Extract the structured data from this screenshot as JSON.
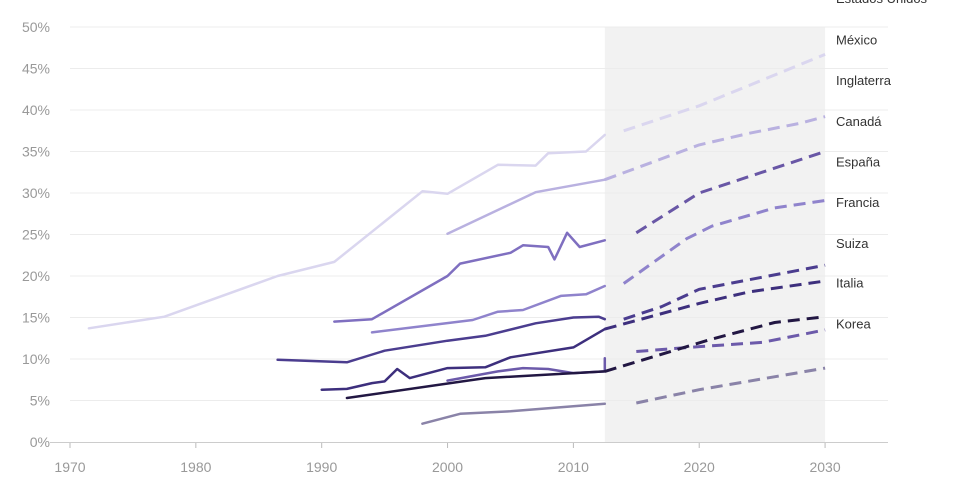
{
  "chart_data": {
    "type": "line",
    "title": "",
    "xlabel": "",
    "ylabel": "",
    "xlim": [
      1970,
      2035
    ],
    "ylim": [
      0,
      50
    ],
    "x_ticks": [
      1970,
      1980,
      1990,
      2000,
      2010,
      2020,
      2030
    ],
    "y_ticks": [
      0,
      5,
      10,
      15,
      20,
      25,
      30,
      35,
      40,
      45,
      50
    ],
    "y_tick_format": "{v}%",
    "projection_shading": [
      2012.5,
      2030
    ],
    "grid": "horizontal",
    "legend": "direct labels at right",
    "series": [
      {
        "name": "Estados Unidos",
        "color": "#dad6ef",
        "actual": [
          [
            1971.5,
            13.7
          ],
          [
            1977.5,
            15.1
          ],
          [
            1986.5,
            20
          ],
          [
            1991,
            21.7
          ],
          [
            1998,
            30.2
          ],
          [
            2000,
            29.9
          ],
          [
            2004,
            33.4
          ],
          [
            2007,
            33.3
          ],
          [
            2008,
            34.8
          ],
          [
            2011,
            35
          ],
          [
            2012.5,
            37
          ]
        ],
        "projection": [
          [
            2014,
            37.5
          ],
          [
            2020,
            40.5
          ],
          [
            2030,
            46.7
          ]
        ]
      },
      {
        "name": "México",
        "color": "#b9b1e0",
        "actual": [
          [
            2000,
            25.1
          ],
          [
            2007,
            30.1
          ],
          [
            2012.5,
            31.6
          ]
        ],
        "projection": [
          [
            2012.5,
            31.6
          ],
          [
            2020,
            35.8
          ],
          [
            2024,
            37.2
          ],
          [
            2028,
            38.4
          ],
          [
            2030,
            39.2
          ]
        ]
      },
      {
        "name": "Inglaterra",
        "color": "#6957a6",
        "actual": [],
        "projection": [
          [
            2015,
            25.2
          ],
          [
            2020,
            30
          ],
          [
            2030,
            35
          ]
        ]
      },
      {
        "name": "Canadá",
        "color": "#7f6fc0",
        "actual": [
          [
            1991,
            14.5
          ],
          [
            1994,
            14.8
          ],
          [
            2000,
            20
          ],
          [
            2001,
            21.5
          ],
          [
            2005,
            22.8
          ],
          [
            2006,
            23.7
          ],
          [
            2008,
            23.5
          ],
          [
            2008.5,
            22
          ],
          [
            2009.5,
            25.2
          ],
          [
            2010.5,
            23.5
          ],
          [
            2012.5,
            24.3
          ]
        ],
        "projection": []
      },
      {
        "name": "España",
        "color": "#8f83cc",
        "actual": [
          [
            1994,
            13.2
          ],
          [
            2002,
            14.7
          ],
          [
            2004,
            15.7
          ],
          [
            2006,
            15.9
          ],
          [
            2009,
            17.6
          ],
          [
            2011,
            17.8
          ],
          [
            2012.5,
            18.8
          ]
        ],
        "projection": [
          [
            2014,
            19.1
          ],
          [
            2019,
            24.5
          ],
          [
            2021,
            26
          ],
          [
            2026,
            28.2
          ],
          [
            2030,
            29.1
          ]
        ]
      },
      {
        "name": "Francia",
        "color": "#4b3d8f",
        "actual": [
          [
            1986.5,
            9.9
          ],
          [
            1992,
            9.6
          ],
          [
            1995,
            11
          ],
          [
            2000,
            12.2
          ],
          [
            2003,
            12.8
          ],
          [
            2007,
            14.3
          ],
          [
            2010,
            15
          ],
          [
            2012,
            15.1
          ],
          [
            2012.5,
            14.8
          ]
        ],
        "projection": [
          [
            2014,
            14.8
          ],
          [
            2017,
            16.3
          ],
          [
            2020,
            18.4
          ],
          [
            2030,
            21.3
          ]
        ]
      },
      {
        "name": "Suiza",
        "color": "#3d2f7d",
        "actual": [
          [
            1990,
            6.3
          ],
          [
            1992,
            6.4
          ],
          [
            1994,
            7.1
          ],
          [
            1995,
            7.3
          ],
          [
            1996,
            8.8
          ],
          [
            1997,
            7.7
          ],
          [
            2000,
            8.9
          ],
          [
            2003,
            9
          ],
          [
            2005,
            10.2
          ],
          [
            2010,
            11.4
          ],
          [
            2012.5,
            13.6
          ]
        ],
        "projection": [
          [
            2012.5,
            13.6
          ],
          [
            2020,
            16.7
          ],
          [
            2024,
            18.1
          ],
          [
            2030,
            19.4
          ]
        ]
      },
      {
        "name": "Italia",
        "color": "#6c5aaa",
        "actual": [
          [
            2000,
            7.4
          ],
          [
            2004,
            8.5
          ],
          [
            2006,
            8.9
          ],
          [
            2008,
            8.8
          ],
          [
            2010,
            8.3
          ],
          [
            2012.5,
            8.5
          ],
          [
            2012.5,
            10.1
          ]
        ],
        "projection": [
          [
            2015,
            10.9
          ],
          [
            2020,
            11.5
          ],
          [
            2025,
            12
          ],
          [
            2030,
            13.5
          ]
        ]
      },
      {
        "name": "Korea",
        "color": "#8a83a8",
        "actual": [
          [
            1998,
            2.2
          ],
          [
            2001,
            3.4
          ],
          [
            2005,
            3.7
          ],
          [
            2012.5,
            4.6
          ]
        ],
        "projection": [
          [
            2015,
            4.7
          ],
          [
            2020,
            6.3
          ],
          [
            2030,
            8.9
          ]
        ]
      },
      {
        "name": "",
        "color": "#221743",
        "actual": [
          [
            1992,
            5.3
          ],
          [
            2003,
            7.7
          ],
          [
            2012.5,
            8.5
          ]
        ],
        "projection": [
          [
            2012.5,
            8.5
          ],
          [
            2021,
            12.4
          ],
          [
            2026,
            14.4
          ],
          [
            2030,
            15.1
          ]
        ]
      }
    ],
    "label_y": [
      53.5,
      48.5,
      43.6,
      38.7,
      33.8,
      28.9,
      24,
      19.2,
      14.3
    ]
  }
}
